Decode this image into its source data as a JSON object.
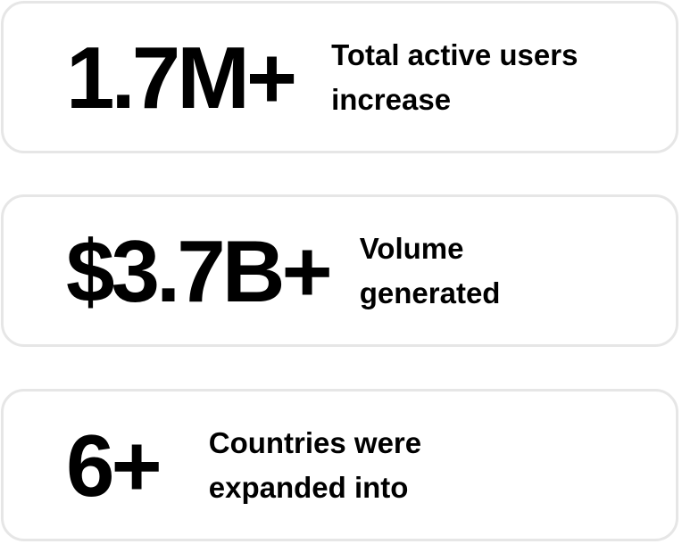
{
  "stats": [
    {
      "value": "1.7M+",
      "description_lines": [
        "Total active users",
        "increase"
      ]
    },
    {
      "value": "$3.7B+",
      "description_lines": [
        "Volume",
        "generated"
      ]
    },
    {
      "value": "6+",
      "description_lines": [
        "Countries were",
        "expanded into"
      ]
    }
  ],
  "colors": {
    "text": "#000000",
    "card_border": "#e6e6e6",
    "background": "#ffffff"
  }
}
